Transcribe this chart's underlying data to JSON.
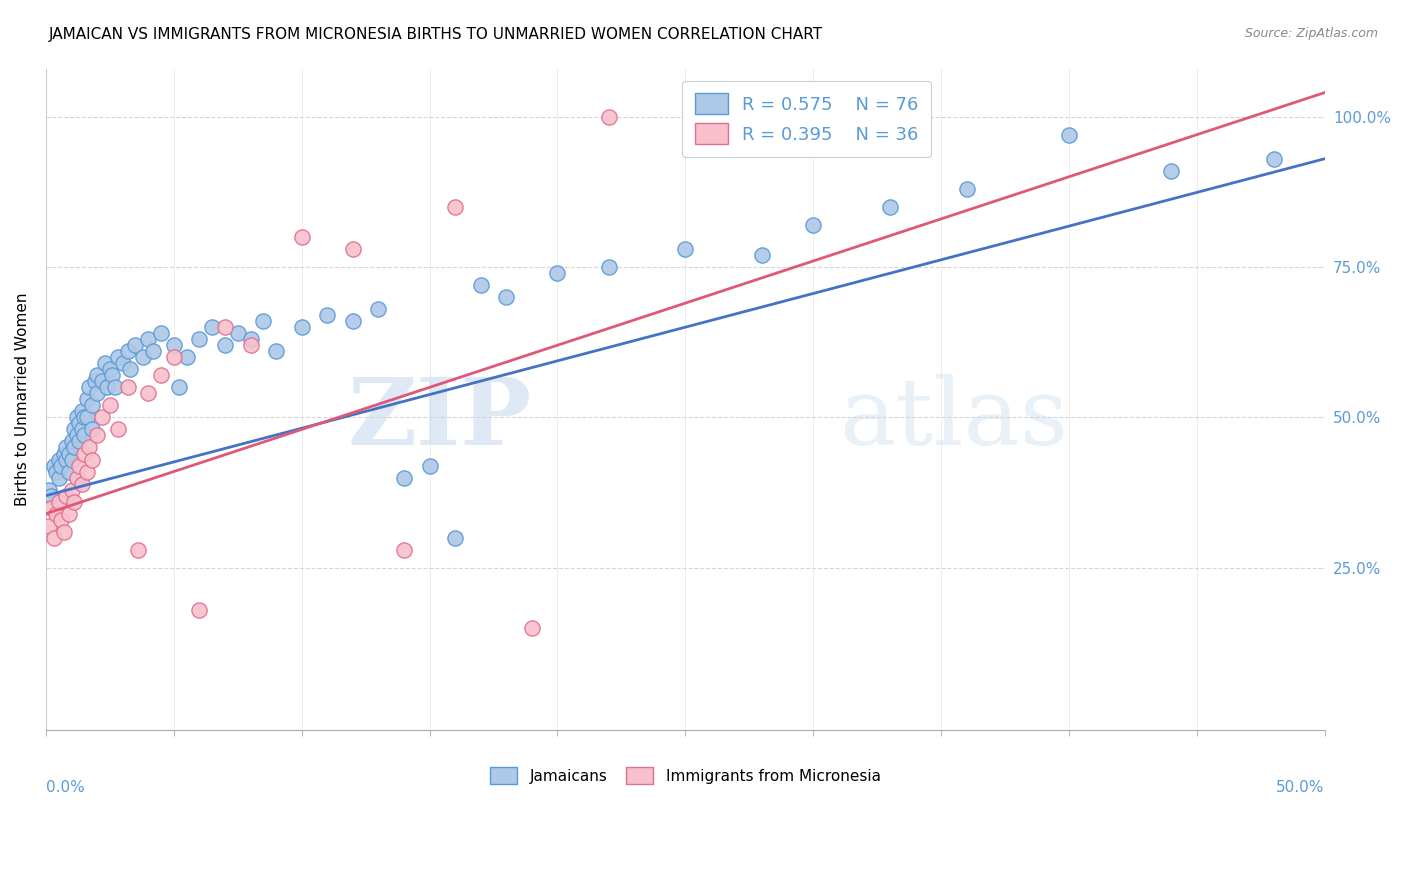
{
  "title": "JAMAICAN VS IMMIGRANTS FROM MICRONESIA BIRTHS TO UNMARRIED WOMEN CORRELATION CHART",
  "source": "Source: ZipAtlas.com",
  "ylabel_label": "Births to Unmarried Women",
  "right_yticklabels": [
    "25.0%",
    "50.0%",
    "75.0%",
    "100.0%"
  ],
  "right_ytick_vals": [
    0.25,
    0.5,
    0.75,
    1.0
  ],
  "watermark_zip": "ZIP",
  "watermark_atlas": "atlas",
  "legend_blue_r": "R = 0.575",
  "legend_blue_n": "N = 76",
  "legend_pink_r": "R = 0.395",
  "legend_pink_n": "N = 36",
  "blue_face_color": "#aec8e8",
  "blue_edge_color": "#5b9bd5",
  "pink_face_color": "#f7c0cc",
  "pink_edge_color": "#e07090",
  "blue_line_color": "#4472c4",
  "pink_line_color": "#e05878",
  "blue_scatter_x": [
    0.001,
    0.002,
    0.003,
    0.004,
    0.005,
    0.005,
    0.006,
    0.007,
    0.008,
    0.008,
    0.009,
    0.009,
    0.01,
    0.01,
    0.011,
    0.011,
    0.012,
    0.012,
    0.013,
    0.013,
    0.014,
    0.014,
    0.015,
    0.015,
    0.016,
    0.016,
    0.017,
    0.018,
    0.018,
    0.019,
    0.02,
    0.02,
    0.022,
    0.023,
    0.024,
    0.025,
    0.026,
    0.027,
    0.028,
    0.03,
    0.032,
    0.033,
    0.035,
    0.038,
    0.04,
    0.042,
    0.045,
    0.05,
    0.052,
    0.055,
    0.06,
    0.065,
    0.07,
    0.075,
    0.08,
    0.085,
    0.09,
    0.1,
    0.11,
    0.12,
    0.13,
    0.14,
    0.15,
    0.16,
    0.17,
    0.18,
    0.2,
    0.22,
    0.25,
    0.28,
    0.3,
    0.33,
    0.36,
    0.4,
    0.44,
    0.48
  ],
  "blue_scatter_y": [
    0.38,
    0.37,
    0.42,
    0.41,
    0.43,
    0.4,
    0.42,
    0.44,
    0.43,
    0.45,
    0.41,
    0.44,
    0.43,
    0.46,
    0.45,
    0.48,
    0.47,
    0.5,
    0.49,
    0.46,
    0.48,
    0.51,
    0.5,
    0.47,
    0.53,
    0.5,
    0.55,
    0.52,
    0.48,
    0.56,
    0.54,
    0.57,
    0.56,
    0.59,
    0.55,
    0.58,
    0.57,
    0.55,
    0.6,
    0.59,
    0.61,
    0.58,
    0.62,
    0.6,
    0.63,
    0.61,
    0.64,
    0.62,
    0.55,
    0.6,
    0.63,
    0.65,
    0.62,
    0.64,
    0.63,
    0.66,
    0.61,
    0.65,
    0.67,
    0.66,
    0.68,
    0.4,
    0.42,
    0.3,
    0.72,
    0.7,
    0.74,
    0.75,
    0.78,
    0.77,
    0.82,
    0.85,
    0.88,
    0.97,
    0.91,
    0.93
  ],
  "pink_scatter_x": [
    0.001,
    0.002,
    0.003,
    0.004,
    0.005,
    0.006,
    0.007,
    0.008,
    0.009,
    0.01,
    0.011,
    0.012,
    0.013,
    0.014,
    0.015,
    0.016,
    0.017,
    0.018,
    0.02,
    0.022,
    0.025,
    0.028,
    0.032,
    0.036,
    0.04,
    0.045,
    0.05,
    0.06,
    0.07,
    0.08,
    0.1,
    0.12,
    0.14,
    0.16,
    0.19,
    0.22
  ],
  "pink_scatter_y": [
    0.32,
    0.35,
    0.3,
    0.34,
    0.36,
    0.33,
    0.31,
    0.37,
    0.34,
    0.38,
    0.36,
    0.4,
    0.42,
    0.39,
    0.44,
    0.41,
    0.45,
    0.43,
    0.47,
    0.5,
    0.52,
    0.48,
    0.55,
    0.28,
    0.54,
    0.57,
    0.6,
    0.18,
    0.65,
    0.62,
    0.8,
    0.78,
    0.28,
    0.85,
    0.15,
    1.0
  ],
  "xlim": [
    0.0,
    0.5
  ],
  "ylim": [
    -0.02,
    1.08
  ],
  "blue_trend_x": [
    0.0,
    0.5
  ],
  "blue_trend_y": [
    0.37,
    0.93
  ],
  "pink_trend_x": [
    0.0,
    0.5
  ],
  "pink_trend_y": [
    0.34,
    1.04
  ],
  "title_fontsize": 11,
  "tick_label_color": "#5b9bd5",
  "background_color": "#ffffff",
  "grid_color": "#cccccc"
}
